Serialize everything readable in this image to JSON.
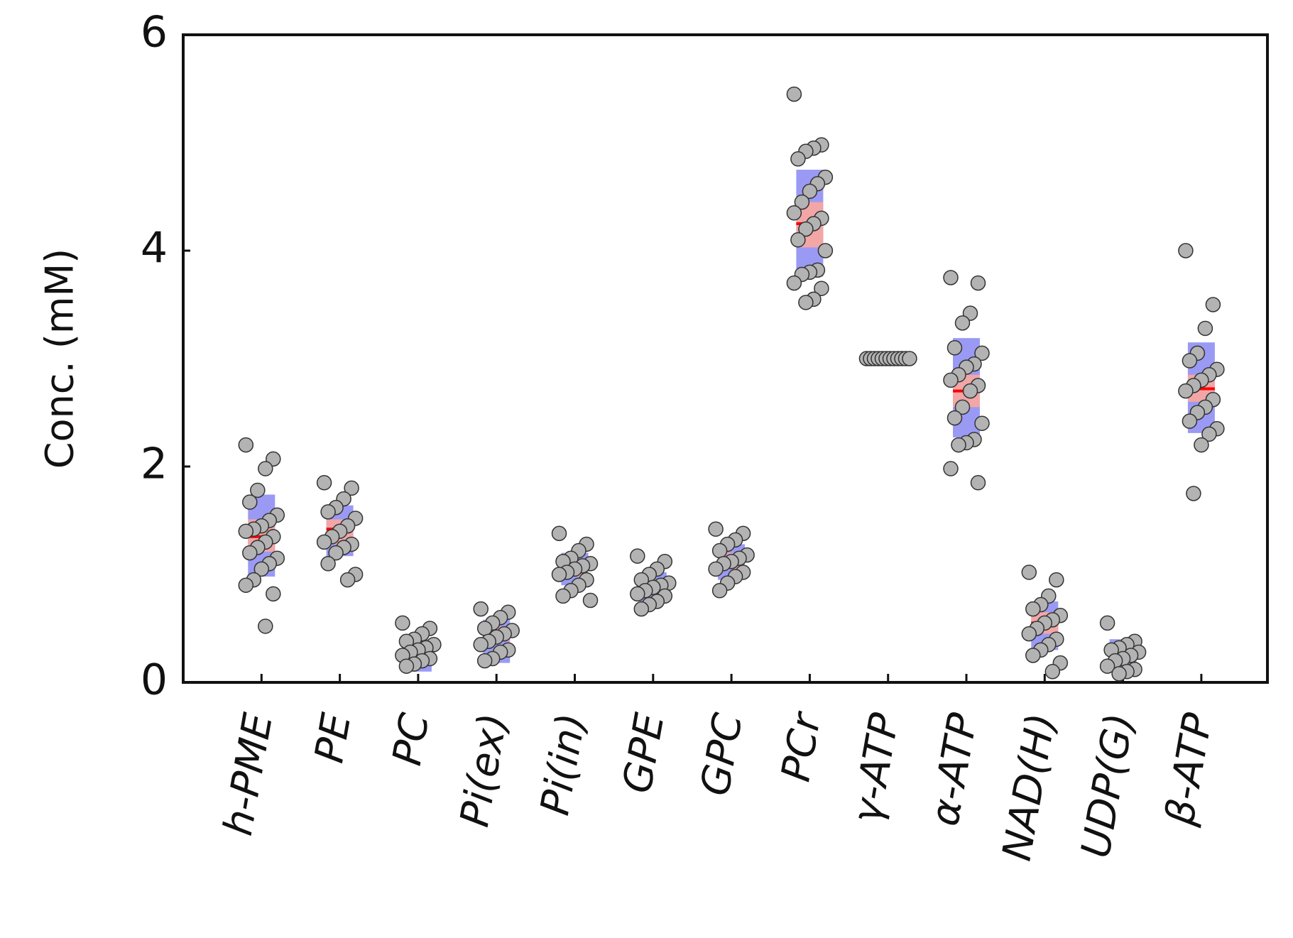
{
  "chart_data": {
    "type": "strip",
    "ylabel": "Conc. (mM)",
    "categories": [
      "h-PME",
      "PE",
      "PC",
      "Pi(ex)",
      "Pi(in)",
      "GPE",
      "GPC",
      "PCr",
      "γ-ATP",
      "α-ATP",
      "NAD(H)",
      "UDP(G)",
      "β-ATP"
    ],
    "means": [
      1.35,
      1.42,
      0.3,
      0.45,
      1.05,
      0.88,
      1.12,
      4.25,
      3,
      2.7,
      0.55,
      0.25,
      2.72
    ],
    "sd_bands": [
      [
        0.98,
        1.74
      ],
      [
        1.17,
        1.64
      ],
      [
        0.1,
        0.4
      ],
      [
        0.18,
        0.58
      ],
      [
        0.9,
        1.2
      ],
      [
        0.75,
        1.02
      ],
      [
        0.95,
        1.28
      ],
      [
        3.76,
        4.75
      ],
      [
        3,
        3
      ],
      [
        2.27,
        3.19
      ],
      [
        0.3,
        0.75
      ],
      [
        0.1,
        0.4
      ],
      [
        2.31,
        3.15
      ]
    ],
    "ci_bands": [
      [
        1.21,
        1.51
      ],
      [
        1.28,
        1.51
      ],
      [
        0.25,
        0.35
      ],
      [
        0.38,
        0.52
      ],
      [
        0.98,
        1.12
      ],
      [
        0.82,
        0.95
      ],
      [
        1.05,
        1.2
      ],
      [
        4.03,
        4.45
      ],
      [
        3,
        3
      ],
      [
        2.55,
        2.85
      ],
      [
        0.45,
        0.65
      ],
      [
        0.2,
        0.3
      ],
      [
        2.6,
        2.85
      ]
    ],
    "points": [
      [
        2.2,
        2.07,
        1.98,
        1.78,
        1.67,
        1.55,
        1.5,
        1.45,
        1.42,
        1.4,
        1.35,
        1.3,
        1.25,
        1.2,
        1.15,
        1.1,
        1.05,
        0.95,
        0.9,
        0.82,
        0.52
      ],
      [
        1.85,
        1.8,
        1.7,
        1.62,
        1.58,
        1.52,
        1.45,
        1.4,
        1.35,
        1.3,
        1.28,
        1.25,
        1.2,
        1.1,
        1.0,
        0.95
      ],
      [
        0.55,
        0.5,
        0.45,
        0.4,
        0.38,
        0.35,
        0.32,
        0.3,
        0.28,
        0.25,
        0.22,
        0.2,
        0.17,
        0.15
      ],
      [
        0.68,
        0.65,
        0.6,
        0.55,
        0.5,
        0.48,
        0.45,
        0.42,
        0.38,
        0.35,
        0.3,
        0.28,
        0.22,
        0.2
      ],
      [
        1.38,
        1.28,
        1.22,
        1.15,
        1.12,
        1.1,
        1.08,
        1.05,
        1.02,
        1.0,
        0.95,
        0.9,
        0.85,
        0.8,
        0.76
      ],
      [
        1.17,
        1.12,
        1.05,
        1.0,
        0.95,
        0.92,
        0.9,
        0.88,
        0.85,
        0.82,
        0.8,
        0.75,
        0.72,
        0.68
      ],
      [
        1.42,
        1.38,
        1.32,
        1.28,
        1.22,
        1.18,
        1.15,
        1.12,
        1.1,
        1.05,
        1.02,
        0.98,
        0.92,
        0.85
      ],
      [
        5.45,
        4.98,
        4.95,
        4.92,
        4.85,
        4.68,
        4.62,
        4.55,
        4.45,
        4.35,
        4.3,
        4.25,
        4.2,
        4.1,
        4.0,
        3.82,
        3.8,
        3.78,
        3.7,
        3.65,
        3.55,
        3.52
      ],
      [
        3,
        3,
        3,
        3,
        3,
        3,
        3,
        3,
        3,
        3,
        3,
        3
      ],
      [
        3.75,
        3.7,
        3.42,
        3.33,
        3.1,
        3.05,
        2.95,
        2.92,
        2.85,
        2.8,
        2.75,
        2.7,
        2.55,
        2.45,
        2.4,
        2.25,
        2.22,
        2.2,
        1.98,
        1.85
      ],
      [
        1.02,
        0.95,
        0.8,
        0.72,
        0.68,
        0.62,
        0.58,
        0.55,
        0.5,
        0.45,
        0.4,
        0.35,
        0.3,
        0.25,
        0.18,
        0.1
      ],
      [
        0.55,
        0.38,
        0.35,
        0.32,
        0.3,
        0.28,
        0.25,
        0.22,
        0.2,
        0.15,
        0.12,
        0.1,
        0.08
      ],
      [
        4.0,
        3.5,
        3.28,
        3.05,
        2.98,
        2.9,
        2.85,
        2.8,
        2.75,
        2.7,
        2.62,
        2.55,
        2.5,
        2.42,
        2.35,
        2.3,
        2.2,
        1.75
      ]
    ],
    "sd_color": "#9a9af5",
    "ci_color": "#f2a6a6",
    "mean_color": "#ff0000",
    "point_color": "#b3b3b3",
    "ylim": [
      0,
      6
    ],
    "yticks": [
      0,
      2,
      4,
      6
    ]
  }
}
